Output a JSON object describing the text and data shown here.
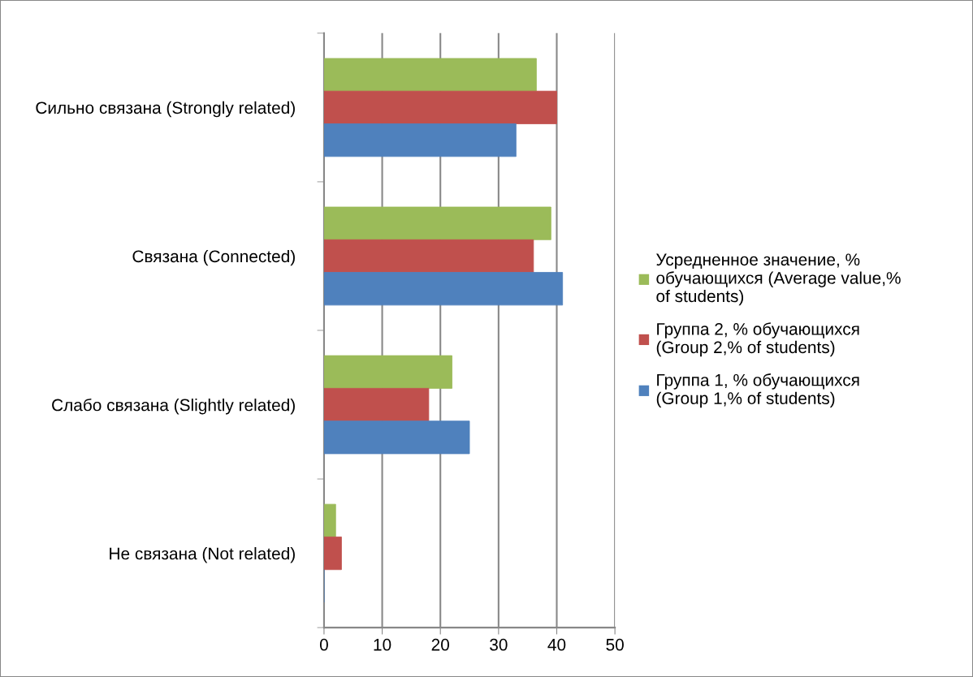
{
  "chart_data": {
    "type": "bar",
    "orientation": "horizontal",
    "categories": [
      "Сильно связана (Strongly related)",
      "Связана (Connected)",
      "Слабо связана (Slightly related)",
      "Не связана (Not related)"
    ],
    "series": [
      {
        "name": "Усредненное значение, % обучающихся (Average value,% of students)",
        "color": "#9bbb59",
        "values": [
          36.5,
          39,
          22,
          2
        ]
      },
      {
        "name": "Группа 2, % обучающихся (Group 2,% of students)",
        "color": "#c0504d",
        "values": [
          40,
          36,
          18,
          3
        ]
      },
      {
        "name": "Группа 1, % обучающихся (Group 1,% of students)",
        "color": "#4f81bd",
        "values": [
          33,
          41,
          25,
          0
        ]
      }
    ],
    "xlim": [
      0,
      50
    ],
    "xticks": [
      0,
      10,
      20,
      30,
      40,
      50
    ],
    "grid": "x",
    "legend": "right"
  }
}
